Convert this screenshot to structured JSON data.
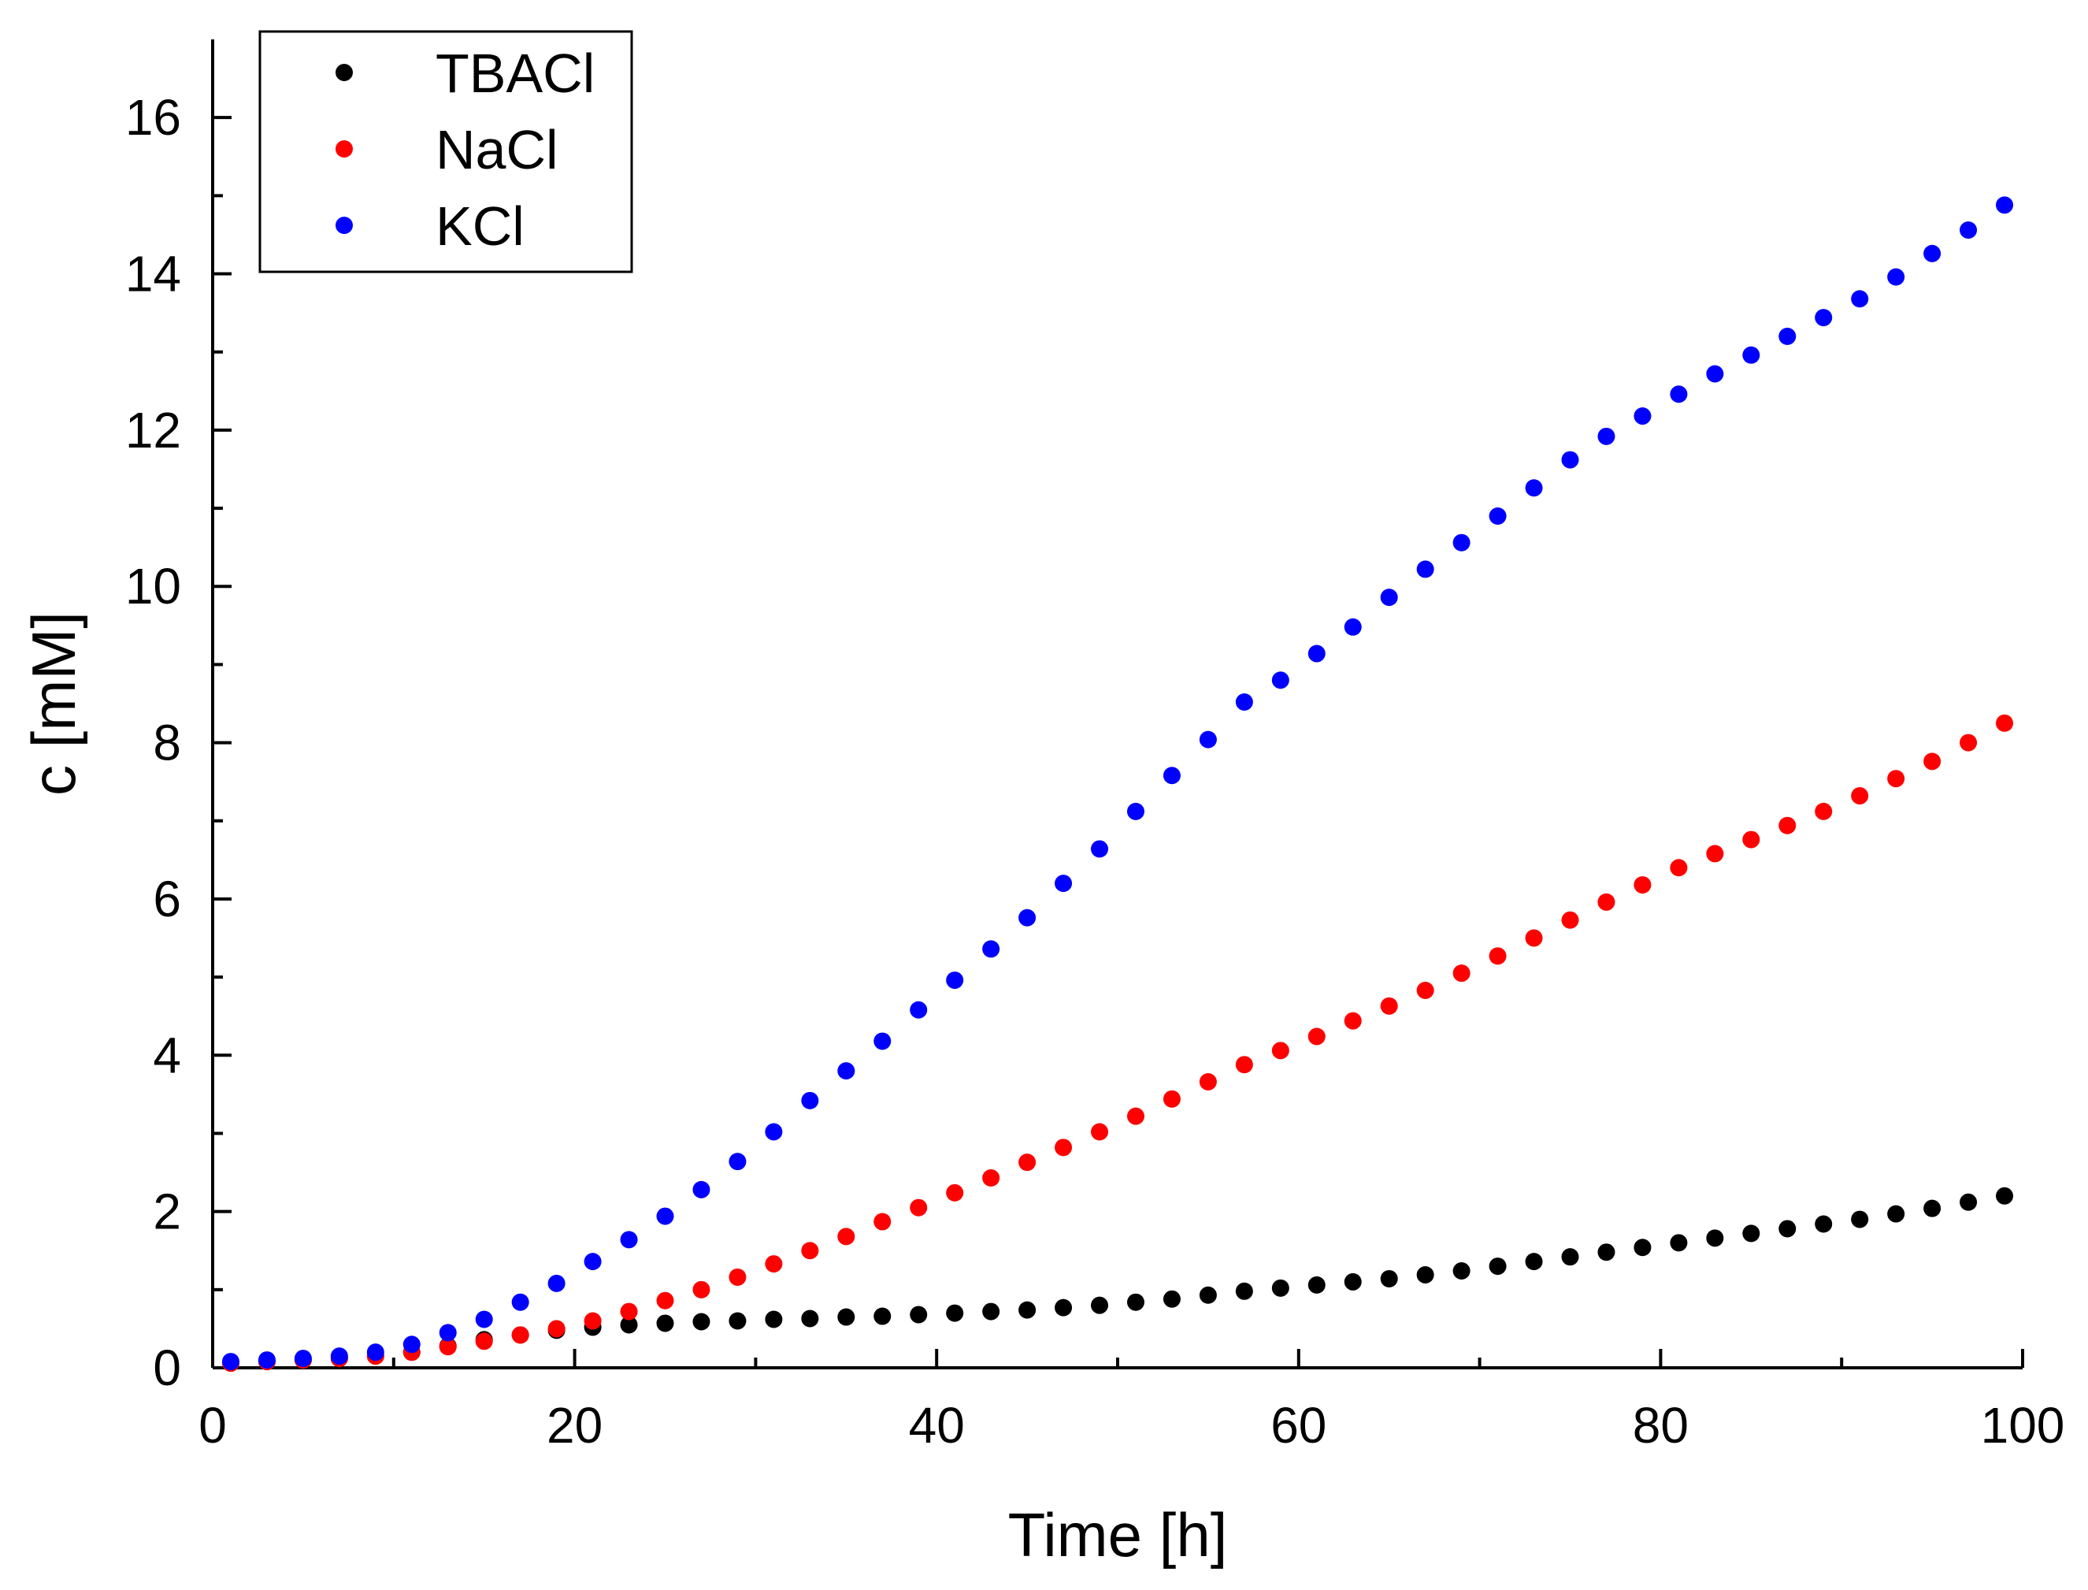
{
  "chart_data": {
    "type": "scatter",
    "title": "",
    "xlabel": "Time [h]",
    "ylabel": "c [mM]",
    "xlim": [
      0,
      100
    ],
    "ylim": [
      0,
      17
    ],
    "xticks": [
      0,
      20,
      40,
      60,
      80,
      100
    ],
    "yticks": [
      0,
      2,
      4,
      6,
      8,
      10,
      12,
      14,
      16
    ],
    "x_tick_labels": [
      "0",
      "20",
      "40",
      "60",
      "80",
      "100"
    ],
    "y_tick_labels": [
      "0",
      "2",
      "4",
      "6",
      "8",
      "10",
      "12",
      "14",
      "16"
    ],
    "grid": false,
    "legend_position": "top-left",
    "x": [
      1,
      3,
      5,
      7,
      9,
      11,
      13,
      15,
      17,
      19,
      21,
      23,
      25,
      27,
      29,
      31,
      33,
      35,
      37,
      39,
      41,
      43,
      45,
      47,
      49,
      51,
      53,
      55,
      57,
      59,
      61,
      63,
      65,
      67,
      69,
      71,
      73,
      75,
      77,
      79,
      81,
      83,
      85,
      87,
      89,
      91,
      93,
      95,
      97,
      99
    ],
    "series": [
      {
        "name": "TBACl",
        "color": "#000000",
        "values": [
          0.06,
          0.08,
          0.1,
          0.12,
          0.15,
          0.2,
          0.28,
          0.36,
          0.42,
          0.48,
          0.52,
          0.55,
          0.57,
          0.59,
          0.6,
          0.62,
          0.63,
          0.65,
          0.66,
          0.68,
          0.7,
          0.72,
          0.74,
          0.77,
          0.8,
          0.84,
          0.88,
          0.93,
          0.98,
          1.02,
          1.06,
          1.1,
          1.14,
          1.19,
          1.24,
          1.3,
          1.36,
          1.42,
          1.48,
          1.54,
          1.6,
          1.66,
          1.72,
          1.78,
          1.84,
          1.9,
          1.97,
          2.04,
          2.12,
          2.2
        ]
      },
      {
        "name": "NaCl",
        "color": "#ff0000",
        "values": [
          0.06,
          0.08,
          0.1,
          0.12,
          0.15,
          0.2,
          0.27,
          0.34,
          0.42,
          0.5,
          0.6,
          0.72,
          0.86,
          1.0,
          1.16,
          1.33,
          1.5,
          1.68,
          1.87,
          2.05,
          2.24,
          2.43,
          2.63,
          2.82,
          3.02,
          3.22,
          3.44,
          3.66,
          3.88,
          4.06,
          4.24,
          4.44,
          4.63,
          4.83,
          5.05,
          5.27,
          5.5,
          5.73,
          5.96,
          6.18,
          6.4,
          6.58,
          6.76,
          6.94,
          7.12,
          7.32,
          7.54,
          7.76,
          8.0,
          8.25
        ]
      },
      {
        "name": "KCl",
        "color": "#0000ff",
        "values": [
          0.08,
          0.1,
          0.12,
          0.15,
          0.2,
          0.3,
          0.45,
          0.62,
          0.84,
          1.08,
          1.36,
          1.64,
          1.94,
          2.28,
          2.64,
          3.02,
          3.42,
          3.8,
          4.18,
          4.58,
          4.96,
          5.36,
          5.76,
          6.2,
          6.64,
          7.12,
          7.58,
          8.04,
          8.52,
          8.8,
          9.14,
          9.48,
          9.86,
          10.22,
          10.56,
          10.9,
          11.26,
          11.62,
          11.92,
          12.18,
          12.46,
          12.72,
          12.96,
          13.2,
          13.44,
          13.68,
          13.96,
          14.26,
          14.56,
          14.88
        ]
      }
    ]
  }
}
